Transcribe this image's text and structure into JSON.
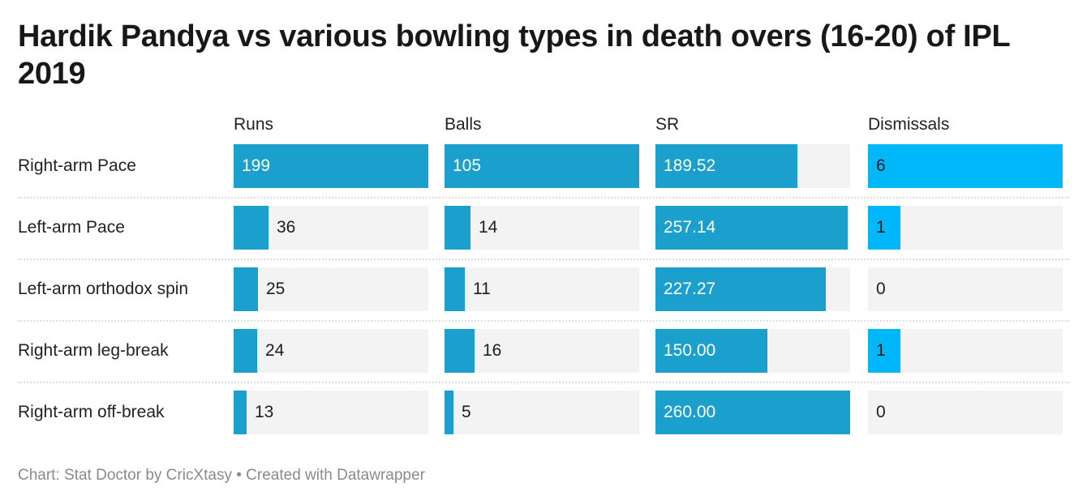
{
  "title": "Hardik Pandya vs various bowling types in death overs (16-20) of IPL 2019",
  "footer": "Chart: Stat Doctor by CricXtasy • Created with Datawrapper",
  "chart_data": {
    "type": "table",
    "columns": [
      {
        "name": "Runs",
        "max": 199,
        "color": "#1b9fcc",
        "text_inside": "#ffffff",
        "format": 0
      },
      {
        "name": "Balls",
        "max": 105,
        "color": "#1b9fcc",
        "text_inside": "#ffffff",
        "format": 0
      },
      {
        "name": "SR",
        "max": 260,
        "color": "#1b9fcc",
        "text_inside": "#ffffff",
        "format": 2
      },
      {
        "name": "Dismissals",
        "max": 6,
        "color": "#00b7f9",
        "text_inside": "#1d1d1d",
        "format": 0
      }
    ],
    "rows": [
      {
        "label": "Right-arm Pace",
        "values": [
          199,
          105,
          189.52,
          6
        ]
      },
      {
        "label": "Left-arm Pace",
        "values": [
          36,
          14,
          257.14,
          1
        ]
      },
      {
        "label": "Left-arm orthodox spin",
        "values": [
          25,
          11,
          227.27,
          0
        ]
      },
      {
        "label": "Right-arm leg-break",
        "values": [
          24,
          16,
          150.0,
          1
        ]
      },
      {
        "label": "Right-arm off-break",
        "values": [
          13,
          5,
          260.0,
          0
        ]
      }
    ],
    "track_color": "#f3f3f3"
  }
}
